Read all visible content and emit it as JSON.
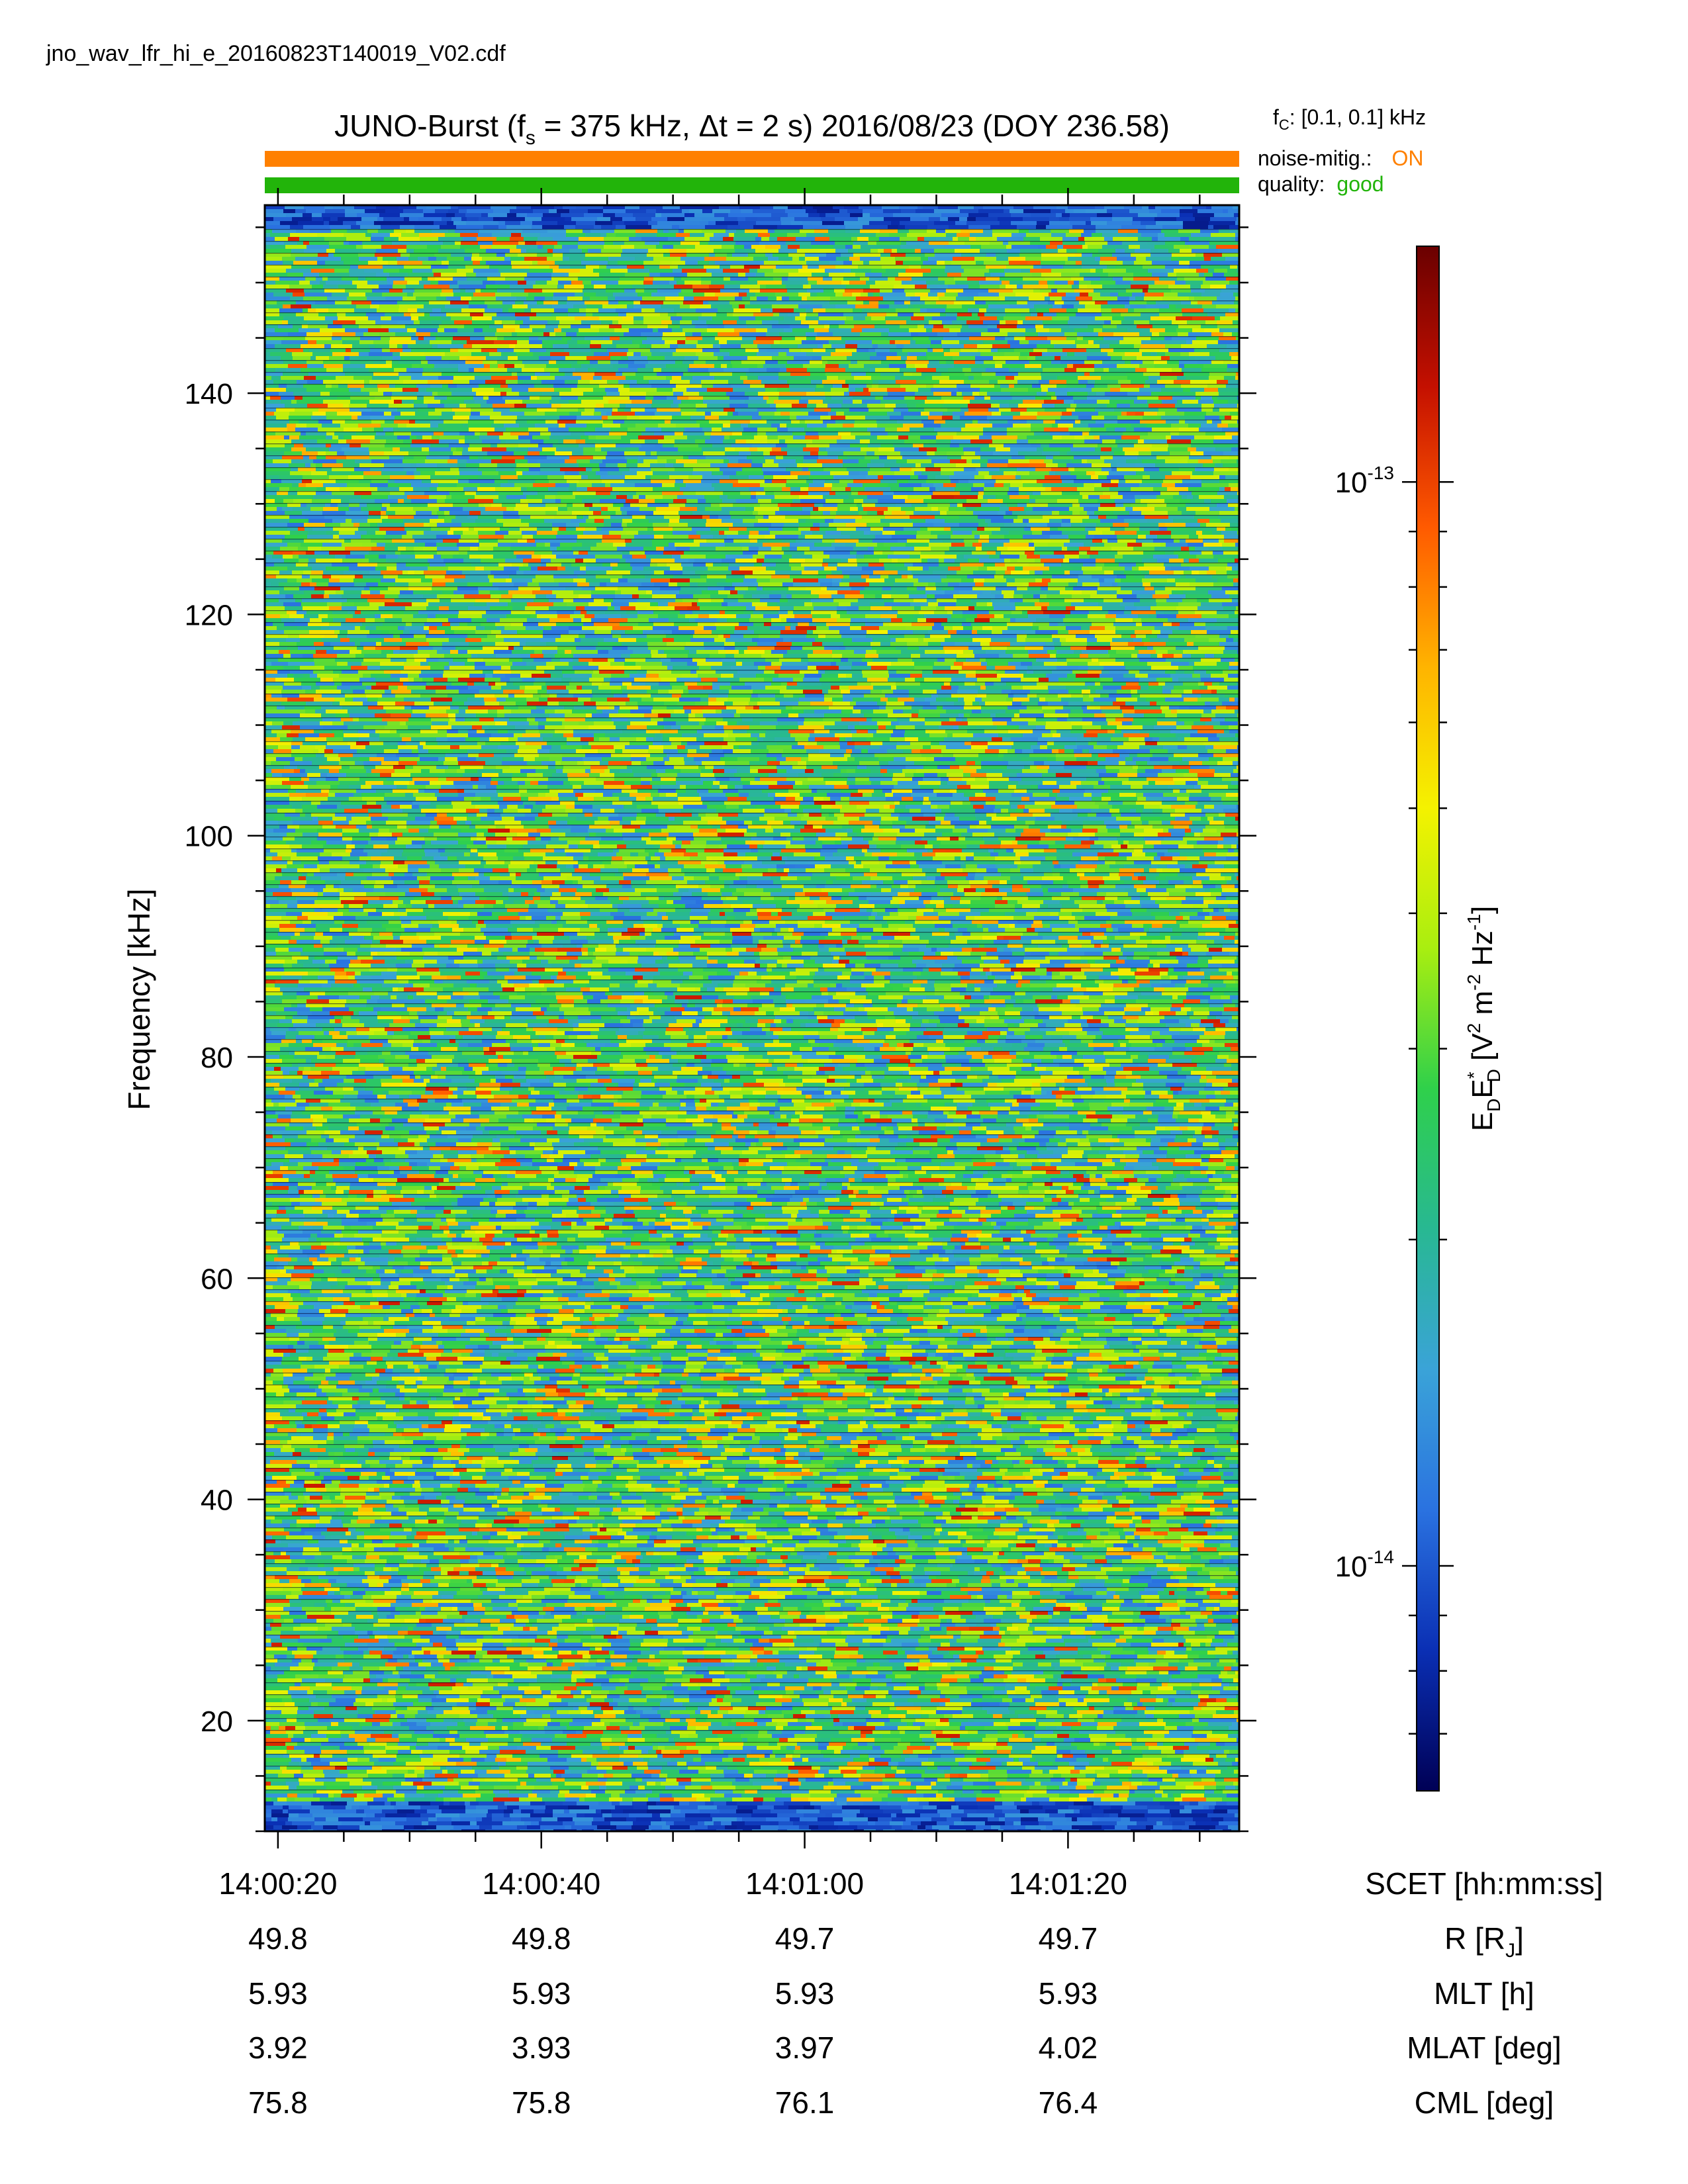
{
  "file_name": "jno_wav_lfr_hi_e_20160823T140019_V02.cdf",
  "header": {
    "title_prefix": "JUNO-Burst (f",
    "title_sub": "s",
    "title_suffix": " = 375 kHz, Δt = 2 s)  2016/08/23 (DOY 236.58)",
    "fc_label": "f",
    "fc_sub": "C",
    "fc_value": ": [0.1, 0.1] kHz",
    "noise_label": "noise-mitig.:",
    "noise_value": "ON",
    "quality_label": "quality:",
    "quality_value": "good",
    "colors": {
      "noise_bar": "#ff8000",
      "quality_bar": "#22b40a"
    }
  },
  "chart_data": {
    "type": "heatmap",
    "x_unit": "SCET [hh:mm:ss]",
    "x_range": [
      "14:00:19",
      "14:01:33"
    ],
    "x_ticks": [
      "14:00:20",
      "14:00:40",
      "14:01:00",
      "14:01:20"
    ],
    "ylabel": "Frequency [kHz]",
    "ylim": [
      10,
      157
    ],
    "y_ticks": [
      20,
      40,
      60,
      80,
      100,
      120,
      140
    ],
    "y_minor_step": 5,
    "colorbar": {
      "label": "E",
      "scale": "log",
      "range": [
        6.2e-15,
        1.65e-13
      ],
      "tick_labels": [
        {
          "value": 1e-13,
          "base": "10",
          "exp": "-13"
        },
        {
          "value": 1e-14,
          "base": "10",
          "exp": "-14"
        }
      ],
      "colormap": [
        "#000055",
        "#0a2fb4",
        "#2a72e0",
        "#3aa3d8",
        "#28b892",
        "#2fd04b",
        "#a9ee10",
        "#f4f200",
        "#ffb400",
        "#ff5a00",
        "#c41000",
        "#6a0000"
      ]
    },
    "background_level": 0.42,
    "low_band_max_khz": 13,
    "top_band_min_khz": 155
  },
  "ephemeris": {
    "rows": [
      {
        "label": "SCET [hh:mm:ss]",
        "values": [
          "14:00:20",
          "14:00:40",
          "14:01:00",
          "14:01:20"
        ]
      },
      {
        "label": "R [R",
        "label_sub": "J",
        "label_end": "]",
        "values": [
          "49.8",
          "49.8",
          "49.7",
          "49.7"
        ]
      },
      {
        "label": "MLT [h]",
        "values": [
          "5.93",
          "5.93",
          "5.93",
          "5.93"
        ]
      },
      {
        "label": "MLAT [deg]",
        "values": [
          "3.92",
          "3.93",
          "3.97",
          "4.02"
        ]
      },
      {
        "label": "CML [deg]",
        "values": [
          "75.8",
          "75.8",
          "76.1",
          "76.4"
        ]
      }
    ]
  }
}
